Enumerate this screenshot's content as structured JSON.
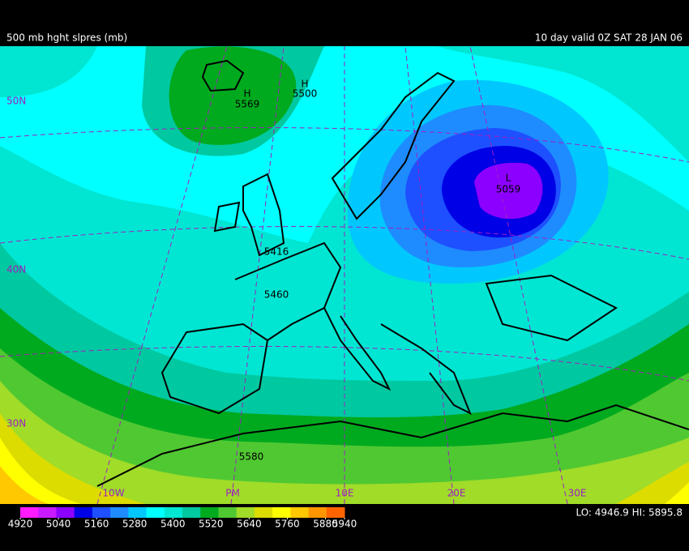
{
  "header": {
    "left": "500 mb hght slpres (mb)",
    "right": "10 day  valid  0Z SAT 28 JAN 06"
  },
  "map": {
    "centers": [
      "H",
      "H",
      "L"
    ],
    "contour_labels": [
      "5569",
      "5500",
      "5059",
      "5416",
      "5460",
      "5580"
    ],
    "lat_labels": [
      "50N",
      "40N",
      "30N"
    ],
    "lon_labels": [
      "10W",
      "PM",
      "10E",
      "20E",
      "30E"
    ]
  },
  "colorbar": {
    "colors": [
      "#ff1aff",
      "#c81aff",
      "#8c00ff",
      "#0000e6",
      "#1e50ff",
      "#1e8cff",
      "#00c8ff",
      "#00ffff",
      "#00e6d2",
      "#00c8a0",
      "#00aa1e",
      "#50c832",
      "#a0dc28",
      "#dcdc00",
      "#ffff00",
      "#ffc800",
      "#ff9600",
      "#ff6400"
    ],
    "ticks": [
      4920,
      5040,
      5160,
      5280,
      5400,
      5520,
      5640,
      5760,
      5880,
      5940
    ]
  },
  "footer": "LO: 4946.9  HI: 5895.8"
}
